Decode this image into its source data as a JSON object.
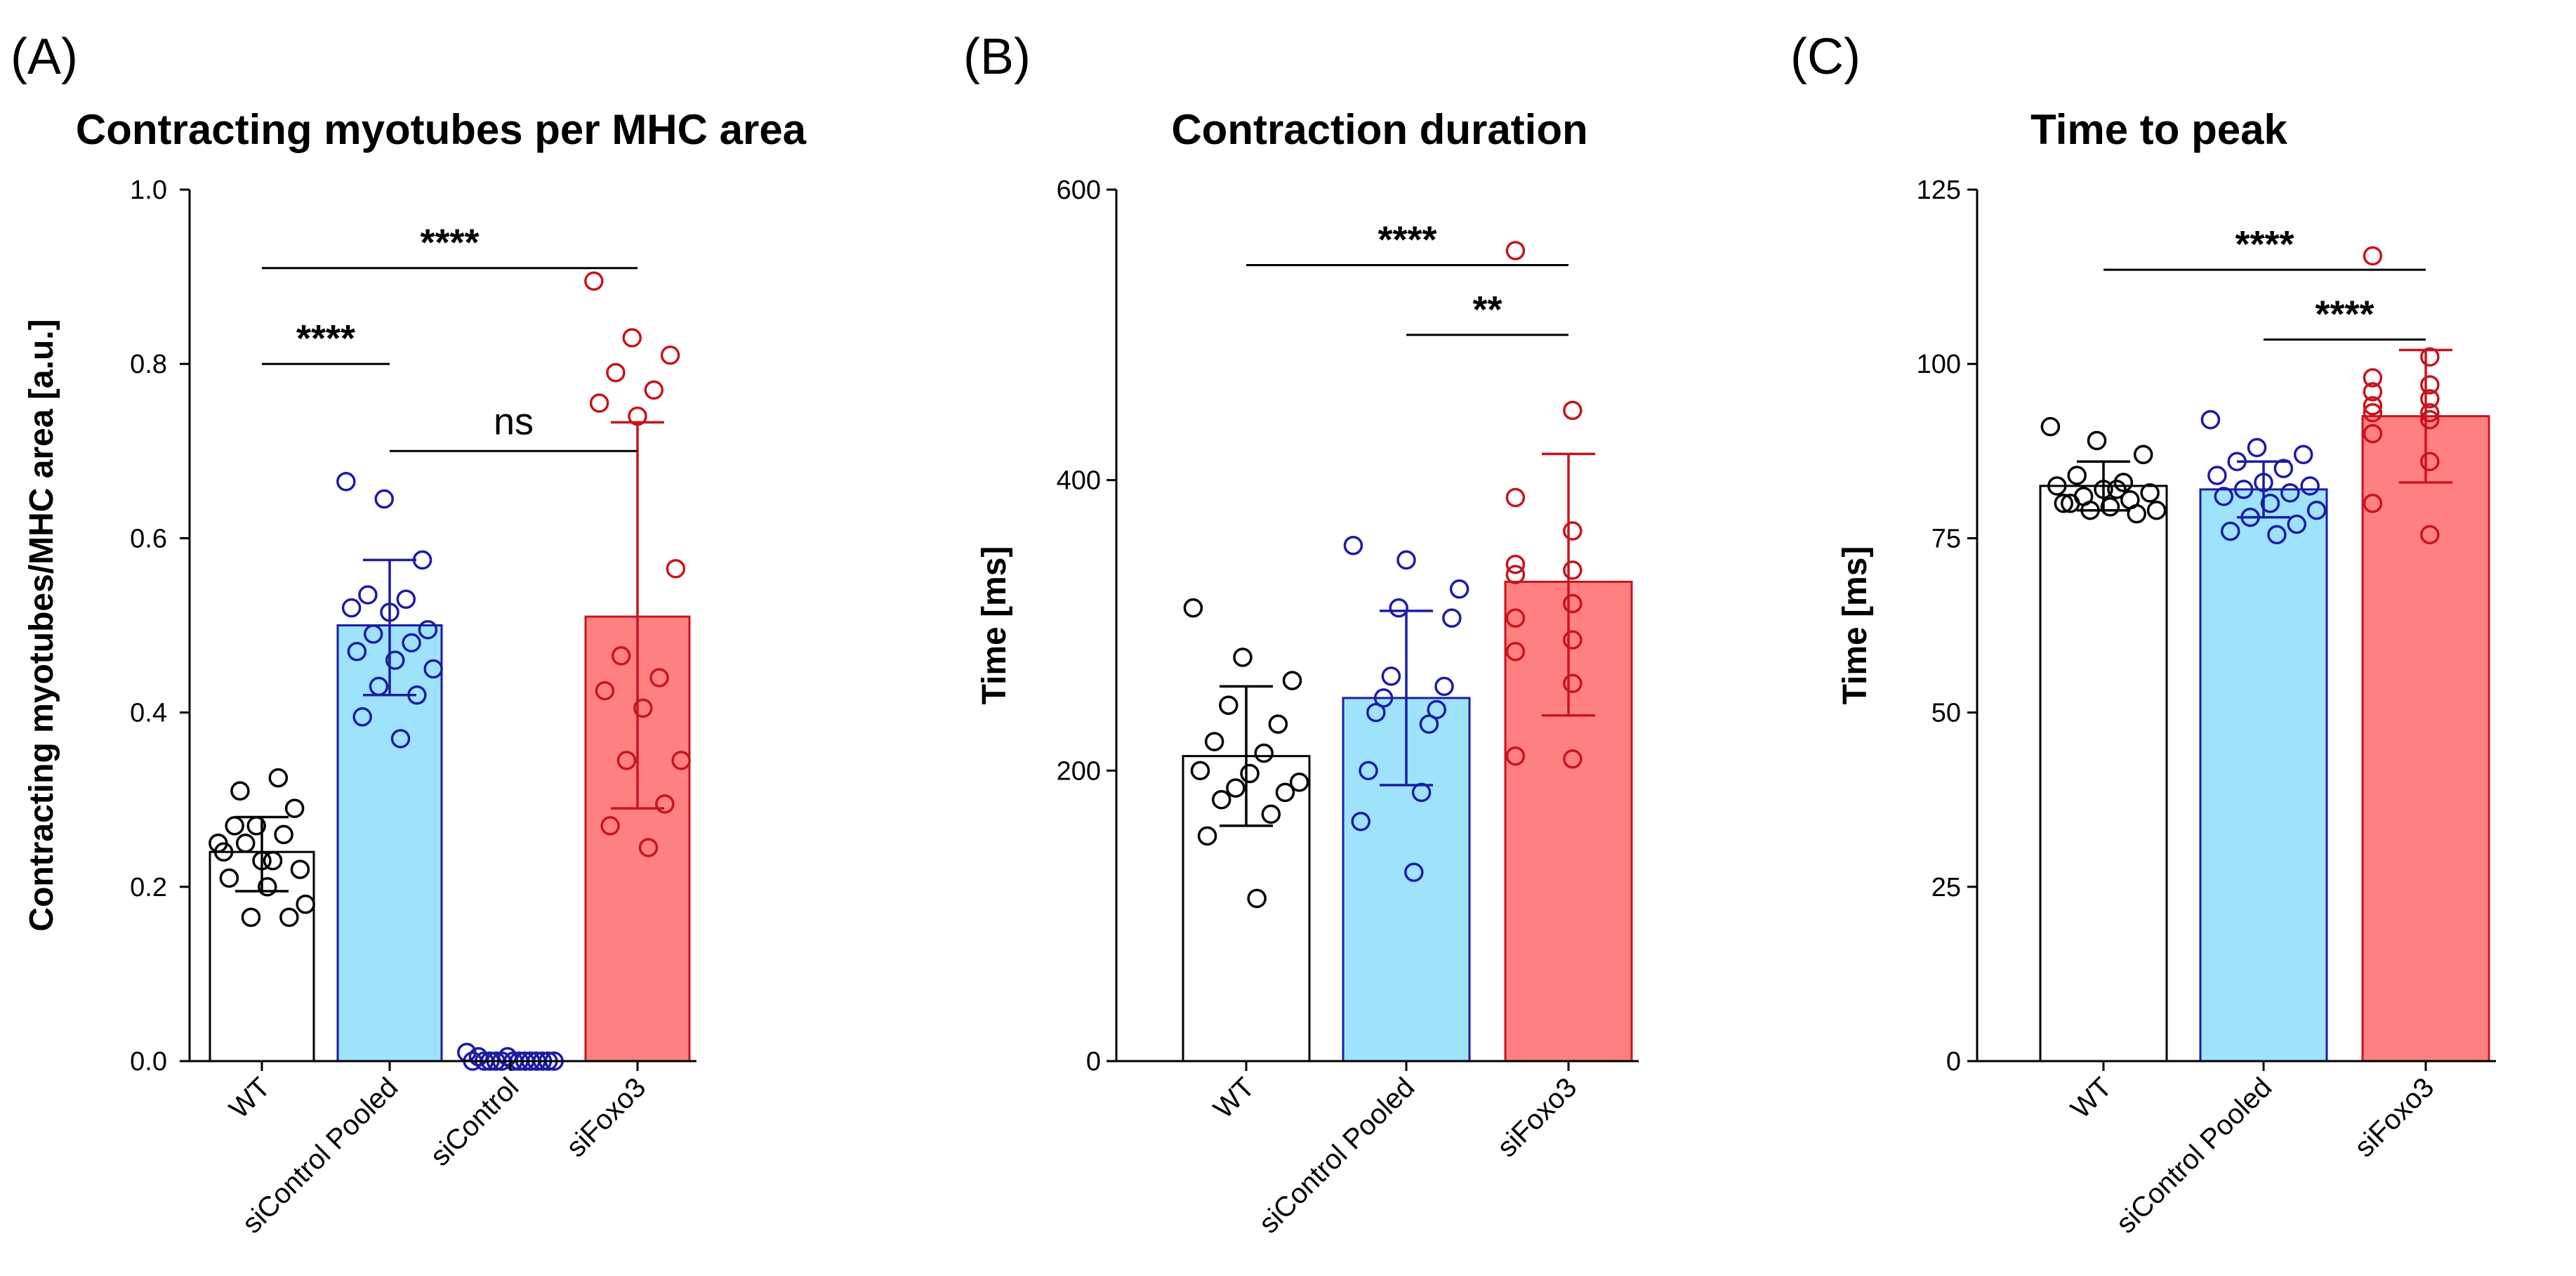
{
  "colors": {
    "white_bar": "#ffffff",
    "blue_fill": "#9ee3fb",
    "blue_edge": "#1c1ca6",
    "red_fill": "#ff8080",
    "red_edge": "#c8141e",
    "black": "#000000"
  },
  "chart_data": [
    {
      "type": "bar",
      "panel_label": "(A)",
      "title": "Contracting myotubes per MHC area",
      "ylabel": "Contracting myotubes/MHC area [a.u.]",
      "xlabel": "",
      "ylim": [
        0,
        1.0
      ],
      "yticks": [
        0.0,
        0.2,
        0.4,
        0.6,
        0.8,
        1.0
      ],
      "ytick_labels": [
        "0.0",
        "0.2",
        "0.4",
        "0.6",
        "0.8",
        "1.0"
      ],
      "categories": [
        "WT",
        "siControl Pooled",
        "siControl",
        "siFoxo3"
      ],
      "values": [
        0.24,
        0.5,
        0.0,
        0.51
      ],
      "error": [
        {
          "low": 0.195,
          "high": 0.28
        },
        {
          "low": 0.42,
          "high": 0.575
        },
        {
          "low": 0.0,
          "high": 0.0
        },
        {
          "low": 0.29,
          "high": 0.733
        }
      ],
      "bar_styles": [
        "white",
        "blue",
        "none",
        "red"
      ],
      "points": [
        [
          0.25,
          0.27,
          0.29,
          0.31,
          0.325,
          0.24,
          0.23,
          0.22,
          0.25,
          0.26,
          0.21,
          0.2,
          0.18,
          0.165,
          0.165,
          0.27,
          0.23
        ],
        [
          0.665,
          0.645,
          0.575,
          0.535,
          0.53,
          0.52,
          0.515,
          0.495,
          0.49,
          0.48,
          0.47,
          0.46,
          0.45,
          0.43,
          0.42,
          0.395,
          0.37
        ],
        [
          0.01,
          0.005,
          0.0,
          0.0,
          0.0,
          0.0,
          0.0,
          0.0,
          0.0,
          0.0,
          0.0,
          0.0,
          0.0,
          0.0,
          0.005,
          0.0
        ],
        [
          0.895,
          0.83,
          0.81,
          0.79,
          0.77,
          0.755,
          0.74,
          0.565,
          0.465,
          0.44,
          0.425,
          0.405,
          0.345,
          0.345,
          0.295,
          0.27,
          0.245
        ]
      ],
      "point_colors": [
        "black",
        "blue",
        "blue",
        "red"
      ],
      "significance": [
        {
          "from": 0,
          "to": 3,
          "label": "****",
          "y": 0.91
        },
        {
          "from": 0,
          "to": 1,
          "label": "****",
          "y": 0.8
        },
        {
          "from": 1,
          "to": 3,
          "label": "ns",
          "y": 0.7
        }
      ]
    },
    {
      "type": "bar",
      "panel_label": "(B)",
      "title": "Contraction duration",
      "ylabel": "Time [ms]",
      "xlabel": "",
      "ylim": [
        0,
        600
      ],
      "yticks": [
        0,
        200,
        400,
        600
      ],
      "ytick_labels": [
        "0",
        "200",
        "400",
        "600"
      ],
      "categories": [
        "WT",
        "siControl Pooled",
        "siFoxo3"
      ],
      "values": [
        210,
        250,
        330
      ],
      "error": [
        {
          "low": 162,
          "high": 258
        },
        {
          "low": 190,
          "high": 310
        },
        {
          "low": 238,
          "high": 418
        }
      ],
      "bar_styles": [
        "white",
        "blue",
        "red"
      ],
      "points": [
        [
          312,
          278,
          262,
          245,
          232,
          220,
          212,
          200,
          198,
          192,
          188,
          185,
          180,
          170,
          155,
          112
        ],
        [
          355,
          345,
          325,
          312,
          305,
          265,
          258,
          250,
          242,
          240,
          232,
          200,
          185,
          165,
          130
        ],
        [
          558,
          448,
          388,
          365,
          342,
          338,
          335,
          315,
          305,
          290,
          282,
          260,
          210,
          208
        ]
      ],
      "point_colors": [
        "black",
        "blue",
        "red"
      ],
      "significance": [
        {
          "from": 0,
          "to": 2,
          "label": "****",
          "y": 548
        },
        {
          "from": 1,
          "to": 2,
          "label": "**",
          "y": 500
        }
      ]
    },
    {
      "type": "bar",
      "panel_label": "(C)",
      "title": "Time to peak",
      "ylabel": "Time [ms]",
      "xlabel": "",
      "ylim": [
        0,
        125
      ],
      "yticks": [
        0,
        25,
        50,
        75,
        100,
        125
      ],
      "ytick_labels": [
        "0",
        "25",
        "50",
        "75",
        "100",
        "125"
      ],
      "categories": [
        "WT",
        "siControl Pooled",
        "siFoxo3"
      ],
      "values": [
        82.5,
        82,
        92.5
      ],
      "error": [
        {
          "low": 79,
          "high": 86
        },
        {
          "low": 78,
          "high": 86
        },
        {
          "low": 83,
          "high": 102
        }
      ],
      "bar_styles": [
        "white",
        "blue",
        "red"
      ],
      "points": [
        [
          91,
          89,
          87,
          84,
          83,
          82.5,
          82,
          81.5,
          81,
          80.5,
          80,
          79.5,
          79,
          79,
          78.5,
          80,
          82
        ],
        [
          92,
          88,
          87,
          86,
          85,
          84,
          83,
          82.5,
          82,
          81.5,
          81,
          80,
          79,
          78,
          77,
          76,
          75.5
        ],
        [
          115.5,
          101,
          98,
          97,
          96,
          95,
          94,
          93,
          93,
          92,
          90,
          86,
          80,
          75.5
        ]
      ],
      "point_colors": [
        "black",
        "blue",
        "red"
      ],
      "significance": [
        {
          "from": 0,
          "to": 2,
          "label": "****",
          "y": 113.5
        },
        {
          "from": 1,
          "to": 2,
          "label": "****",
          "y": 103.5
        }
      ]
    }
  ]
}
